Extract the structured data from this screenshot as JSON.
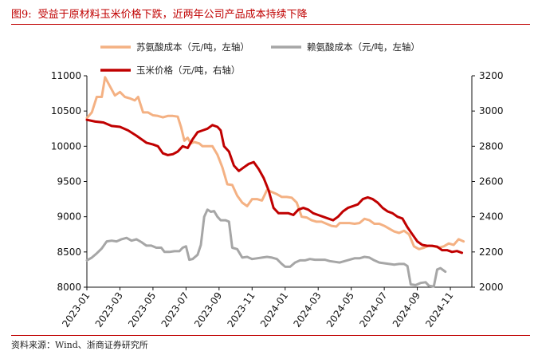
{
  "figure": {
    "number": "图9:",
    "title": "受益于原材料玉米价格下跌，近两年公司产品成本持续下降",
    "source": "资料来源：Wind、浙商证券研究所"
  },
  "chart_data": {
    "type": "line",
    "grid": false,
    "legend_position": "top-left",
    "x_ticks": [
      "2023-01",
      "2023-03",
      "2023-05",
      "2023-07",
      "2023-09",
      "2023-11",
      "2024-01",
      "2024-03",
      "2024-05",
      "2024-07",
      "2024-09",
      "2024-11"
    ],
    "x_range": [
      0,
      23.3
    ],
    "y_left": {
      "min": 8000,
      "max": 11000,
      "ticks": [
        8000,
        8500,
        9000,
        9500,
        10000,
        10500,
        11000
      ]
    },
    "y_right": {
      "min": 2000,
      "max": 3200,
      "ticks": [
        2000,
        2200,
        2400,
        2600,
        2800,
        3000,
        3200
      ]
    },
    "series": [
      {
        "name": "苏氨酸成本（元/吨，左轴）",
        "axis": "left",
        "color": "#f4b183",
        "points": [
          [
            0,
            10400
          ],
          [
            0.3,
            10480
          ],
          [
            0.6,
            10700
          ],
          [
            0.9,
            10700
          ],
          [
            1.1,
            10980
          ],
          [
            1.4,
            10850
          ],
          [
            1.7,
            10720
          ],
          [
            2.0,
            10770
          ],
          [
            2.3,
            10700
          ],
          [
            2.6,
            10680
          ],
          [
            2.9,
            10650
          ],
          [
            3.1,
            10700
          ],
          [
            3.4,
            10480
          ],
          [
            3.7,
            10480
          ],
          [
            4.0,
            10440
          ],
          [
            4.3,
            10430
          ],
          [
            4.6,
            10410
          ],
          [
            4.9,
            10430
          ],
          [
            5.2,
            10430
          ],
          [
            5.5,
            10420
          ],
          [
            5.7,
            10270
          ],
          [
            5.9,
            10080
          ],
          [
            6.1,
            10120
          ],
          [
            6.3,
            10040
          ],
          [
            6.5,
            10060
          ],
          [
            6.8,
            10040
          ],
          [
            7.0,
            10000
          ],
          [
            7.2,
            10000
          ],
          [
            7.6,
            10000
          ],
          [
            7.9,
            9880
          ],
          [
            8.2,
            9700
          ],
          [
            8.5,
            9460
          ],
          [
            8.8,
            9450
          ],
          [
            9.1,
            9300
          ],
          [
            9.4,
            9200
          ],
          [
            9.7,
            9150
          ],
          [
            10.0,
            9250
          ],
          [
            10.3,
            9250
          ],
          [
            10.6,
            9230
          ],
          [
            10.9,
            9380
          ],
          [
            11.2,
            9350
          ],
          [
            11.5,
            9320
          ],
          [
            11.8,
            9280
          ],
          [
            12.1,
            9280
          ],
          [
            12.4,
            9270
          ],
          [
            12.7,
            9200
          ],
          [
            13.0,
            9000
          ],
          [
            13.3,
            8990
          ],
          [
            13.6,
            8950
          ],
          [
            13.9,
            8930
          ],
          [
            14.2,
            8930
          ],
          [
            14.5,
            8900
          ],
          [
            14.8,
            8870
          ],
          [
            15.1,
            8860
          ],
          [
            15.3,
            8910
          ],
          [
            15.6,
            8910
          ],
          [
            15.9,
            8910
          ],
          [
            16.2,
            8900
          ],
          [
            16.5,
            8910
          ],
          [
            16.8,
            8970
          ],
          [
            17.1,
            8950
          ],
          [
            17.4,
            8900
          ],
          [
            17.7,
            8900
          ],
          [
            18.0,
            8870
          ],
          [
            18.3,
            8830
          ],
          [
            18.6,
            8790
          ],
          [
            18.9,
            8770
          ],
          [
            19.2,
            8800
          ],
          [
            19.5,
            8750
          ],
          [
            19.8,
            8580
          ],
          [
            20.1,
            8540
          ],
          [
            20.4,
            8560
          ],
          [
            20.7,
            8590
          ],
          [
            21.0,
            8580
          ],
          [
            21.3,
            8560
          ],
          [
            21.6,
            8580
          ],
          [
            21.9,
            8620
          ],
          [
            22.2,
            8600
          ],
          [
            22.5,
            8680
          ],
          [
            22.8,
            8650
          ]
        ]
      },
      {
        "name": "赖氨酸成本（元/吨，左轴）",
        "axis": "left",
        "color": "#a6a6a6",
        "points": [
          [
            0,
            8380
          ],
          [
            0.3,
            8420
          ],
          [
            0.6,
            8480
          ],
          [
            0.9,
            8550
          ],
          [
            1.2,
            8650
          ],
          [
            1.5,
            8660
          ],
          [
            1.8,
            8650
          ],
          [
            2.1,
            8680
          ],
          [
            2.4,
            8700
          ],
          [
            2.7,
            8660
          ],
          [
            3.0,
            8680
          ],
          [
            3.3,
            8640
          ],
          [
            3.6,
            8590
          ],
          [
            3.9,
            8590
          ],
          [
            4.2,
            8560
          ],
          [
            4.5,
            8560
          ],
          [
            4.7,
            8500
          ],
          [
            5.0,
            8500
          ],
          [
            5.3,
            8510
          ],
          [
            5.6,
            8510
          ],
          [
            5.8,
            8560
          ],
          [
            6.0,
            8580
          ],
          [
            6.2,
            8390
          ],
          [
            6.4,
            8400
          ],
          [
            6.7,
            8460
          ],
          [
            6.9,
            8600
          ],
          [
            7.1,
            9000
          ],
          [
            7.3,
            9100
          ],
          [
            7.5,
            9070
          ],
          [
            7.7,
            9080
          ],
          [
            7.9,
            9000
          ],
          [
            8.1,
            8950
          ],
          [
            8.4,
            8950
          ],
          [
            8.6,
            8930
          ],
          [
            8.8,
            8560
          ],
          [
            9.1,
            8540
          ],
          [
            9.4,
            8420
          ],
          [
            9.7,
            8430
          ],
          [
            10.0,
            8400
          ],
          [
            10.3,
            8410
          ],
          [
            10.6,
            8420
          ],
          [
            10.9,
            8430
          ],
          [
            11.2,
            8420
          ],
          [
            11.5,
            8400
          ],
          [
            11.8,
            8330
          ],
          [
            12.0,
            8290
          ],
          [
            12.3,
            8290
          ],
          [
            12.6,
            8350
          ],
          [
            12.9,
            8380
          ],
          [
            13.2,
            8380
          ],
          [
            13.5,
            8400
          ],
          [
            13.8,
            8390
          ],
          [
            14.1,
            8390
          ],
          [
            14.4,
            8390
          ],
          [
            14.7,
            8370
          ],
          [
            15.0,
            8360
          ],
          [
            15.3,
            8350
          ],
          [
            15.6,
            8370
          ],
          [
            15.9,
            8390
          ],
          [
            16.2,
            8410
          ],
          [
            16.5,
            8410
          ],
          [
            16.8,
            8430
          ],
          [
            17.1,
            8420
          ],
          [
            17.4,
            8380
          ],
          [
            17.7,
            8350
          ],
          [
            18.0,
            8340
          ],
          [
            18.3,
            8330
          ],
          [
            18.6,
            8320
          ],
          [
            18.9,
            8330
          ],
          [
            19.2,
            8330
          ],
          [
            19.4,
            8300
          ],
          [
            19.6,
            8040
          ],
          [
            19.9,
            8030
          ],
          [
            20.2,
            8060
          ],
          [
            20.5,
            8070
          ],
          [
            20.7,
            8020
          ],
          [
            21.0,
            8010
          ],
          [
            21.2,
            8250
          ],
          [
            21.4,
            8270
          ],
          [
            21.7,
            8220
          ]
        ]
      },
      {
        "name": "玉米价格（元/吨，右轴）",
        "axis": "right",
        "color": "#c00000",
        "points": [
          [
            0,
            2950
          ],
          [
            0.5,
            2940
          ],
          [
            1.0,
            2935
          ],
          [
            1.5,
            2915
          ],
          [
            2.0,
            2910
          ],
          [
            2.5,
            2890
          ],
          [
            3.0,
            2860
          ],
          [
            3.3,
            2840
          ],
          [
            3.6,
            2820
          ],
          [
            4.0,
            2810
          ],
          [
            4.3,
            2800
          ],
          [
            4.6,
            2760
          ],
          [
            4.9,
            2750
          ],
          [
            5.2,
            2755
          ],
          [
            5.5,
            2770
          ],
          [
            5.8,
            2800
          ],
          [
            6.1,
            2790
          ],
          [
            6.4,
            2840
          ],
          [
            6.7,
            2880
          ],
          [
            7.0,
            2890
          ],
          [
            7.3,
            2900
          ],
          [
            7.6,
            2920
          ],
          [
            7.9,
            2910
          ],
          [
            8.1,
            2890
          ],
          [
            8.3,
            2800
          ],
          [
            8.6,
            2770
          ],
          [
            8.9,
            2690
          ],
          [
            9.2,
            2660
          ],
          [
            9.5,
            2680
          ],
          [
            9.8,
            2700
          ],
          [
            10.1,
            2710
          ],
          [
            10.4,
            2670
          ],
          [
            10.7,
            2620
          ],
          [
            11.0,
            2550
          ],
          [
            11.3,
            2450
          ],
          [
            11.6,
            2420
          ],
          [
            11.9,
            2420
          ],
          [
            12.2,
            2420
          ],
          [
            12.5,
            2410
          ],
          [
            12.8,
            2440
          ],
          [
            13.1,
            2450
          ],
          [
            13.4,
            2440
          ],
          [
            13.7,
            2420
          ],
          [
            14.0,
            2410
          ],
          [
            14.3,
            2400
          ],
          [
            14.6,
            2390
          ],
          [
            14.9,
            2380
          ],
          [
            15.2,
            2400
          ],
          [
            15.5,
            2430
          ],
          [
            15.8,
            2450
          ],
          [
            16.1,
            2460
          ],
          [
            16.4,
            2470
          ],
          [
            16.7,
            2500
          ],
          [
            17.0,
            2510
          ],
          [
            17.3,
            2500
          ],
          [
            17.6,
            2480
          ],
          [
            17.9,
            2450
          ],
          [
            18.2,
            2430
          ],
          [
            18.5,
            2420
          ],
          [
            18.8,
            2400
          ],
          [
            19.1,
            2390
          ],
          [
            19.4,
            2340
          ],
          [
            19.7,
            2300
          ],
          [
            20.0,
            2260
          ],
          [
            20.3,
            2240
          ],
          [
            20.6,
            2235
          ],
          [
            20.9,
            2235
          ],
          [
            21.2,
            2230
          ],
          [
            21.5,
            2210
          ],
          [
            21.8,
            2210
          ],
          [
            22.1,
            2200
          ],
          [
            22.4,
            2205
          ],
          [
            22.7,
            2195
          ]
        ]
      }
    ]
  }
}
